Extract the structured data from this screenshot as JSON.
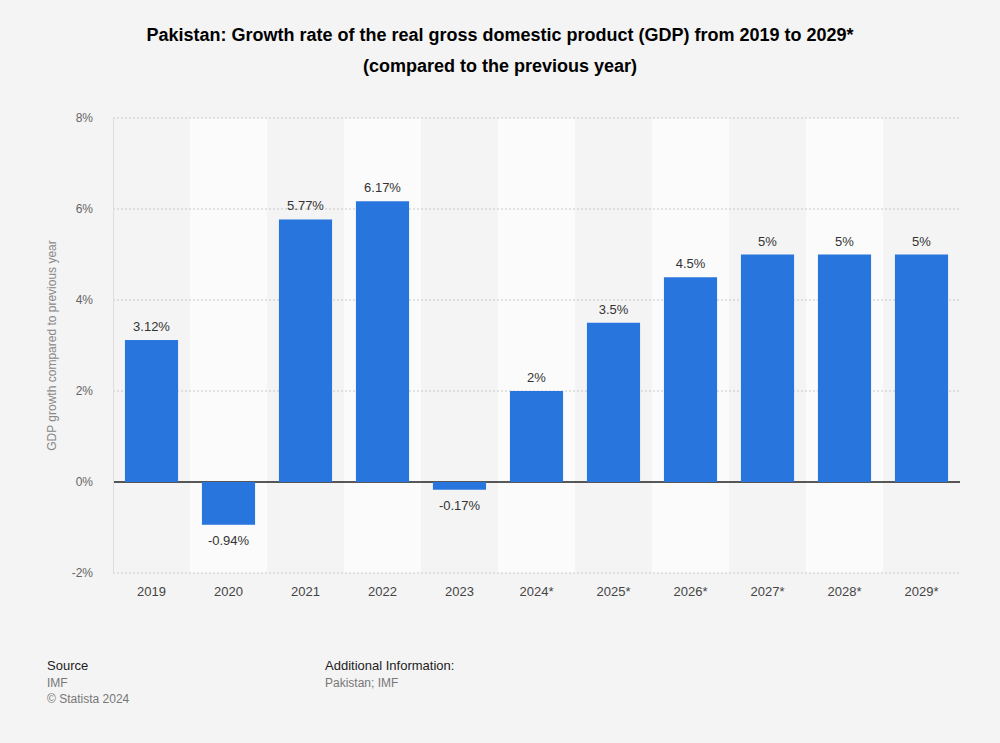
{
  "chart_data": {
    "type": "bar",
    "title": "Pakistan: Growth rate of the real gross domestic product (GDP) from 2019 to 2029*",
    "subtitle": "(compared to the previous year)",
    "y_label": "GDP growth compared to previous year",
    "categories": [
      "2019",
      "2020",
      "2021",
      "2022",
      "2023",
      "2024*",
      "2025*",
      "2026*",
      "2027*",
      "2028*",
      "2029*"
    ],
    "values": [
      3.12,
      -0.94,
      5.77,
      6.17,
      -0.17,
      2,
      3.5,
      4.5,
      5,
      5,
      5
    ],
    "value_labels": [
      "3.12%",
      "-0.94%",
      "5.77%",
      "6.17%",
      "-0.17%",
      "2%",
      "3.5%",
      "4.5%",
      "5%",
      "5%",
      "5%"
    ],
    "data_labels": true,
    "color": "#2876dd",
    "ylim": [
      -2,
      8
    ],
    "yticks": [
      {
        "value": -2,
        "label": "-2%"
      },
      {
        "value": 0,
        "label": "0%"
      },
      {
        "value": 2,
        "label": "2%"
      },
      {
        "value": 4,
        "label": "4%"
      },
      {
        "value": 6,
        "label": "6%"
      },
      {
        "value": 8,
        "label": "8%"
      }
    ],
    "grid": true,
    "annotations": [
      "Source",
      "IMF",
      "© Statista 2024",
      "Additional Information:",
      "Pakistan; IMF"
    ]
  }
}
